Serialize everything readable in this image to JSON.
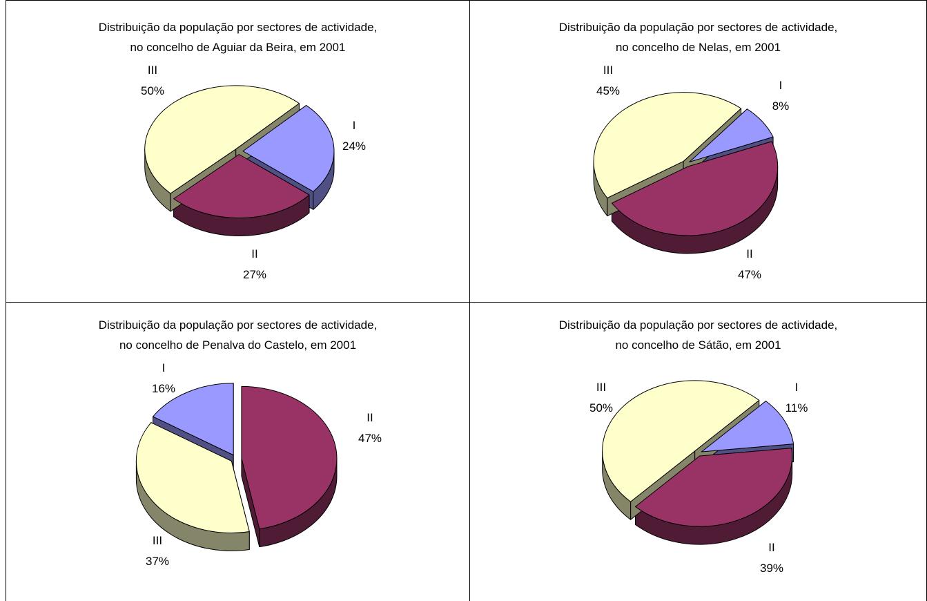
{
  "colors": {
    "I": "#9999ff",
    "II": "#993366",
    "III": "#ffffcc"
  },
  "chart_data": [
    {
      "type": "pie",
      "title_line1": "Distribuição da população por sectores de actividade,",
      "title_line2": "no concelho de Aguiar da Beira, em 2001",
      "slices": [
        {
          "category": "I",
          "value": 24,
          "label": "24%"
        },
        {
          "category": "II",
          "value": 27,
          "label": "27%"
        },
        {
          "category": "III",
          "value": 50,
          "label": "50%"
        }
      ]
    },
    {
      "type": "pie",
      "title_line1": "Distribuição da população por sectores de actividade,",
      "title_line2": "no concelho de Nelas, em 2001",
      "slices": [
        {
          "category": "I",
          "value": 8,
          "label": "8%"
        },
        {
          "category": "II",
          "value": 47,
          "label": "47%"
        },
        {
          "category": "III",
          "value": 45,
          "label": "45%"
        }
      ]
    },
    {
      "type": "pie",
      "title_line1": "Distribuição da população por sectores de actividade,",
      "title_line2": "no concelho de Penalva do Castelo, em 2001",
      "slices": [
        {
          "category": "I",
          "value": 16,
          "label": "16%"
        },
        {
          "category": "II",
          "value": 47,
          "label": "47%"
        },
        {
          "category": "III",
          "value": 37,
          "label": "37%"
        }
      ]
    },
    {
      "type": "pie",
      "title_line1": "Distribuição da população por sectores de actividade,",
      "title_line2": "no concelho de Sátão, em 2001",
      "slices": [
        {
          "category": "I",
          "value": 11,
          "label": "11%"
        },
        {
          "category": "II",
          "value": 39,
          "label": "39%"
        },
        {
          "category": "III",
          "value": 50,
          "label": "50%"
        }
      ]
    }
  ]
}
